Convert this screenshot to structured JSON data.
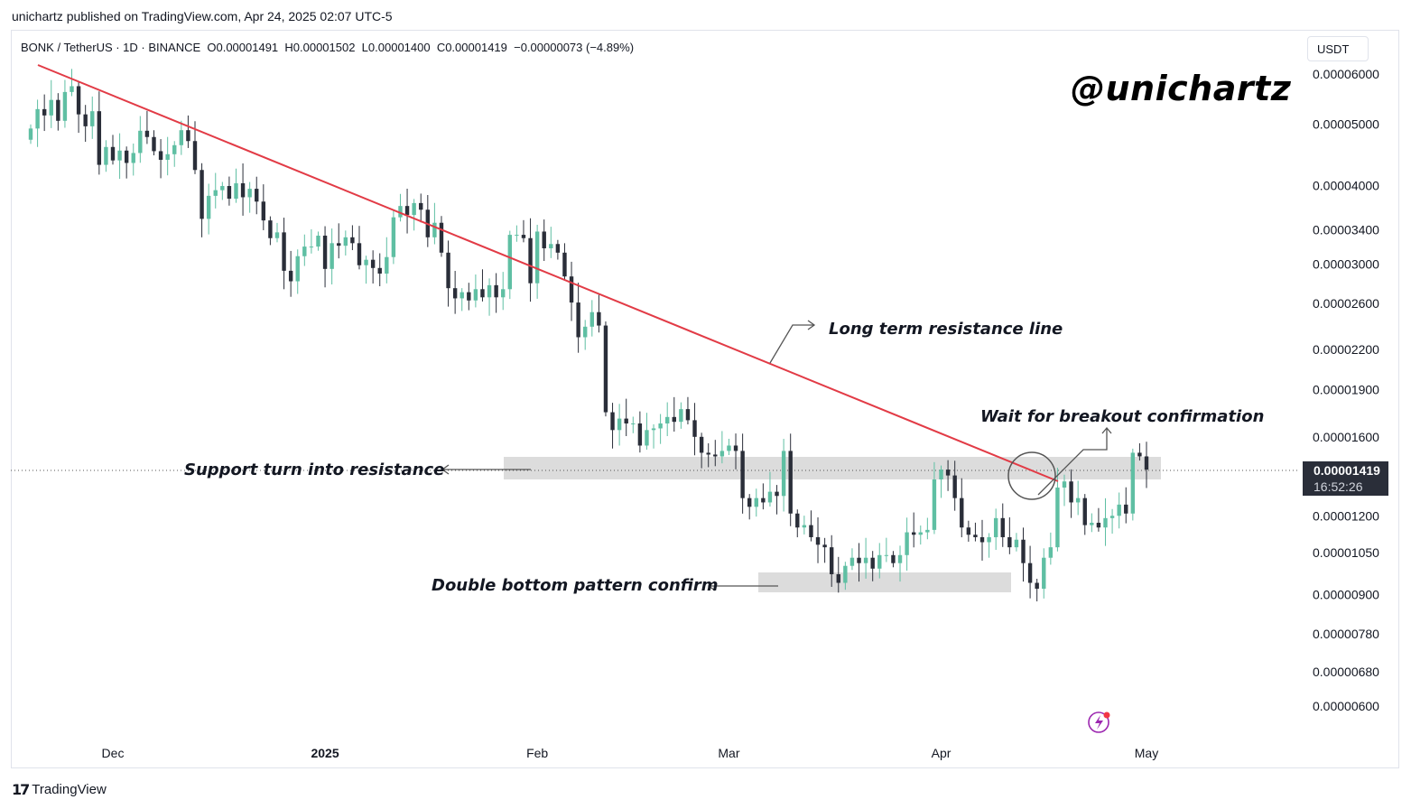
{
  "header": {
    "published": "unichartz published on TradingView.com, Apr 24, 2025 02:07 UTC-5",
    "symbol_line": "BONK / TetherUS · 1D · BINANCE  O0.00001491  H0.00001502  L0.00001400  C0.00001419  −0.00000073 (−4.89%)",
    "currency": "USDT"
  },
  "watermark": "@unichartz",
  "footer": {
    "brand": "TradingView",
    "logo_icon": "tradingview-logo-icon"
  },
  "colors": {
    "up": "#5fbfa3",
    "down": "#2a2e39",
    "trendline": "#e23b46",
    "zone": "#dcdcdc"
  },
  "chart_data": {
    "type": "candlestick",
    "scale": "log",
    "y_ticks": [
      "0.00006000",
      "0.00005000",
      "0.00004000",
      "0.00003400",
      "0.00003000",
      "0.00002600",
      "0.00002200",
      "0.00001900",
      "0.00001600",
      "0.00001200",
      "0.00001050",
      "0.00000900",
      "0.00000780",
      "0.00000680",
      "0.00000600"
    ],
    "x_ticks": [
      {
        "label": "Dec",
        "date": "2024-12-01",
        "bold": false
      },
      {
        "label": "2025",
        "date": "2025-01-01",
        "bold": true
      },
      {
        "label": "Feb",
        "date": "2025-02-01",
        "bold": false
      },
      {
        "label": "Mar",
        "date": "2025-03-01",
        "bold": false
      },
      {
        "label": "Apr",
        "date": "2025-04-01",
        "bold": false
      },
      {
        "label": "May",
        "date": "2025-05-01",
        "bold": false
      }
    ],
    "last_price": "0.00001419",
    "countdown": "16:52:26",
    "closes": [
      4.92,
      5.28,
      5.16,
      5.46,
      5.06,
      5.62,
      5.74,
      5.18,
      4.96,
      5.24,
      4.31,
      4.6,
      4.38,
      4.54,
      4.34,
      4.5,
      4.88,
      4.77,
      4.53,
      4.39,
      4.48,
      4.63,
      4.89,
      4.7,
      4.23,
      3.54,
      3.85,
      3.93,
      3.99,
      3.81,
      4.03,
      3.83,
      3.95,
      3.77,
      3.52,
      3.3,
      3.37,
      2.93,
      2.82,
      3.09,
      3.2,
      3.2,
      3.33,
      2.95,
      3.24,
      3.21,
      3.31,
      3.24,
      2.99,
      3.05,
      2.96,
      2.9,
      3.08,
      3.56,
      3.71,
      3.59,
      3.75,
      3.66,
      3.31,
      3.49,
      3.13,
      2.75,
      2.65,
      2.71,
      2.63,
      2.74,
      2.66,
      2.78,
      2.66,
      2.74,
      3.34,
      3.34,
      3.3,
      2.8,
      3.38,
      3.18,
      3.23,
      3.13,
      2.87,
      2.61,
      2.3,
      2.39,
      2.52,
      2.4,
      1.75,
      1.64,
      1.71,
      1.68,
      1.68,
      1.55,
      1.64,
      1.65,
      1.68,
      1.72,
      1.69,
      1.77,
      1.7,
      1.6,
      1.51,
      1.5,
      1.49,
      1.52,
      1.55,
      1.52,
      1.28,
      1.24,
      1.28,
      1.26,
      1.31,
      1.29,
      1.52,
      1.21,
      1.15,
      1.16,
      1.11,
      1.08,
      1.07,
      0.97,
      0.94,
      1,
      1.03,
      1.01,
      1.03,
      0.99,
      1.04,
      1.04,
      1.01,
      1.04,
      1.13,
      1.12,
      1.13,
      1.14,
      1.37,
      1.42,
      1.39,
      1.28,
      1.15,
      1.12,
      1.11,
      1.09,
      1.11,
      1.19,
      1.11,
      1.07,
      1.1,
      1.01,
      0.94,
      0.92,
      1.03,
      1.07,
      1.33,
      1.36,
      1.26,
      1.28,
      1.16,
      1.17,
      1.15,
      1.19,
      1.2,
      1.25,
      1.21,
      1.51,
      1.49,
      1.42
    ]
  },
  "annotations": {
    "long_term": "Long term resistance line",
    "breakout": "Wait for breakout confirmation",
    "support": "Support turn into resistance",
    "double_bottom": "Double bottom pattern confirm"
  }
}
